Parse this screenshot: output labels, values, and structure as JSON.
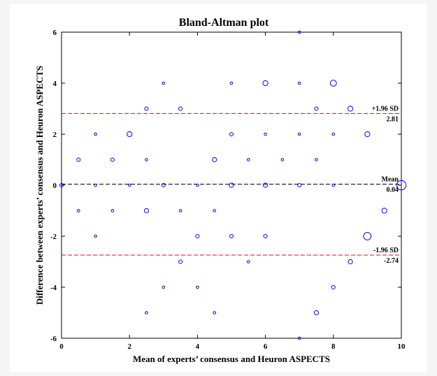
{
  "chart_data": {
    "type": "scatter",
    "title": "Bland-Altman plot",
    "xlabel": "Mean of experts’ consensus and Heuron ASPECTS",
    "ylabel": "Difference between experts’ consensus and Heuron ASPECTS",
    "xlim": [
      0,
      10
    ],
    "ylim": [
      -6,
      6
    ],
    "xticks": [
      "0",
      "2",
      "4",
      "6",
      "8",
      "10"
    ],
    "yticks": [
      "-6",
      "-4",
      "-2",
      "0",
      "2",
      "4",
      "6"
    ],
    "grid": false,
    "marker_color": "#0000ff",
    "lines": [
      {
        "name": "+1.96 SD",
        "value": 2.81,
        "value_label": "2.81",
        "color": "#ff0000",
        "style": "dashed"
      },
      {
        "name": "Mean",
        "value": 0.04,
        "value_label": "0.04",
        "color": "#000000",
        "style": "dashed"
      },
      {
        "name": "-1.96 SD",
        "value": -2.74,
        "value_label": "-2.74",
        "color": "#ff0000",
        "style": "dashed"
      }
    ],
    "points": [
      {
        "x": 0,
        "y": 0,
        "size": 2
      },
      {
        "x": 0.5,
        "y": 1,
        "size": 2
      },
      {
        "x": 0.5,
        "y": -1,
        "size": 1
      },
      {
        "x": 1,
        "y": 2,
        "size": 1
      },
      {
        "x": 1,
        "y": 0,
        "size": 1
      },
      {
        "x": 1,
        "y": -2,
        "size": 1
      },
      {
        "x": 1.5,
        "y": 1,
        "size": 2
      },
      {
        "x": 1.5,
        "y": -1,
        "size": 1
      },
      {
        "x": 2,
        "y": 2,
        "size": 4
      },
      {
        "x": 2,
        "y": 0,
        "size": 1
      },
      {
        "x": 2.5,
        "y": 3,
        "size": 2
      },
      {
        "x": 2.5,
        "y": 1,
        "size": 1
      },
      {
        "x": 2.5,
        "y": -1,
        "size": 3
      },
      {
        "x": 2.5,
        "y": -5,
        "size": 1
      },
      {
        "x": 3,
        "y": 4,
        "size": 1
      },
      {
        "x": 3,
        "y": 0,
        "size": 2
      },
      {
        "x": 3,
        "y": -4,
        "size": 1
      },
      {
        "x": 3.5,
        "y": 3,
        "size": 2
      },
      {
        "x": 3.5,
        "y": -1,
        "size": 1
      },
      {
        "x": 3.5,
        "y": -3,
        "size": 2
      },
      {
        "x": 4,
        "y": 0,
        "size": 1
      },
      {
        "x": 4,
        "y": -2,
        "size": 2
      },
      {
        "x": 4,
        "y": -4,
        "size": 1
      },
      {
        "x": 4.5,
        "y": 1,
        "size": 3
      },
      {
        "x": 4.5,
        "y": -1,
        "size": 1
      },
      {
        "x": 4.5,
        "y": -5,
        "size": 1
      },
      {
        "x": 5,
        "y": 4,
        "size": 1
      },
      {
        "x": 5,
        "y": 2,
        "size": 2
      },
      {
        "x": 5,
        "y": 0,
        "size": 3
      },
      {
        "x": 5,
        "y": -2,
        "size": 2
      },
      {
        "x": 5.5,
        "y": 1,
        "size": 1
      },
      {
        "x": 5.5,
        "y": -3,
        "size": 1
      },
      {
        "x": 6,
        "y": 4,
        "size": 4
      },
      {
        "x": 6,
        "y": 2,
        "size": 1
      },
      {
        "x": 6,
        "y": 0,
        "size": 3
      },
      {
        "x": 6,
        "y": -2,
        "size": 2
      },
      {
        "x": 6.5,
        "y": 1,
        "size": 1
      },
      {
        "x": 7,
        "y": 6,
        "size": 1
      },
      {
        "x": 7,
        "y": 4,
        "size": 1
      },
      {
        "x": 7,
        "y": 2,
        "size": 1
      },
      {
        "x": 7,
        "y": 0,
        "size": 2
      },
      {
        "x": 7,
        "y": -6,
        "size": 1
      },
      {
        "x": 7.5,
        "y": 3,
        "size": 2
      },
      {
        "x": 7.5,
        "y": 1,
        "size": 1
      },
      {
        "x": 7.5,
        "y": -5,
        "size": 3
      },
      {
        "x": 8,
        "y": 4,
        "size": 6
      },
      {
        "x": 8,
        "y": 2,
        "size": 1
      },
      {
        "x": 8,
        "y": 0,
        "size": 1
      },
      {
        "x": 8,
        "y": -4,
        "size": 2
      },
      {
        "x": 8.5,
        "y": 3,
        "size": 4
      },
      {
        "x": 8.5,
        "y": -3,
        "size": 3
      },
      {
        "x": 9,
        "y": 2,
        "size": 4
      },
      {
        "x": 9,
        "y": -2,
        "size": 9
      },
      {
        "x": 9.5,
        "y": -1,
        "size": 4
      },
      {
        "x": 10,
        "y": 0,
        "size": 14
      }
    ]
  }
}
